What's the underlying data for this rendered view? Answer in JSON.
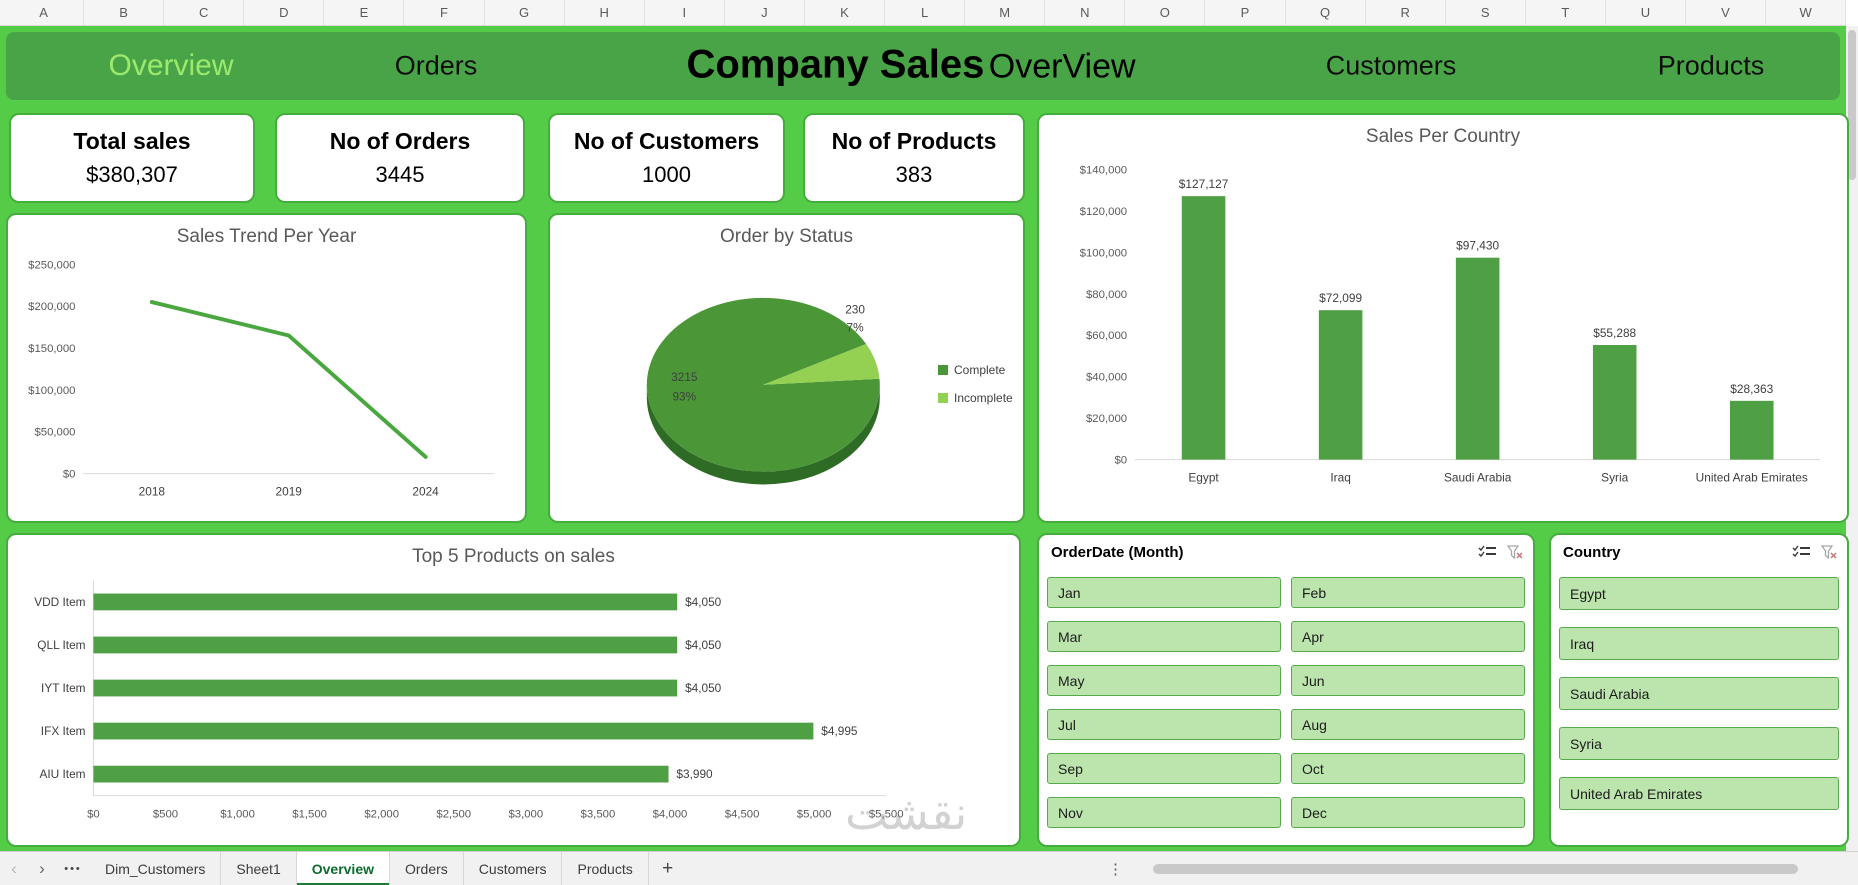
{
  "window": {
    "columns": [
      "A",
      "B",
      "C",
      "D",
      "E",
      "F",
      "G",
      "H",
      "I",
      "J",
      "K",
      "L",
      "M",
      "N",
      "O",
      "P",
      "Q",
      "R",
      "S",
      "T",
      "U",
      "V",
      "W"
    ]
  },
  "nav": {
    "items": [
      "Overview",
      "Orders",
      "Customers",
      "Products"
    ],
    "title_bold": "Company Sales",
    "title_light": "OverView"
  },
  "kpis": [
    {
      "label": "Total sales",
      "value": "$380,307"
    },
    {
      "label": "No of Orders",
      "value": "3445"
    },
    {
      "label": "No of Customers",
      "value": "1000"
    },
    {
      "label": "No of Products",
      "value": "383"
    }
  ],
  "chart_data": [
    {
      "id": "sales_trend",
      "type": "line",
      "title": "Sales Trend Per Year",
      "categories": [
        "2018",
        "2019",
        "2024"
      ],
      "values": [
        205000,
        165000,
        20000
      ],
      "ylim": [
        0,
        250000
      ],
      "ytick_step": 50000,
      "line_color": "#4aa73f",
      "grid": false,
      "legend": "none"
    },
    {
      "id": "order_status",
      "type": "pie",
      "title": "Order by Status",
      "slices": [
        {
          "label": "Complete",
          "value": 3215,
          "pct": "93%",
          "color": "#4b9738"
        },
        {
          "label": "Incomplete",
          "value": 230,
          "pct": "7%",
          "color": "#94d153"
        }
      ],
      "legend_position": "right",
      "effect": "3d"
    },
    {
      "id": "sales_per_country",
      "type": "bar",
      "title": "Sales Per Country",
      "categories": [
        "Egypt",
        "Iraq",
        "Saudi Arabia",
        "Syria",
        "United Arab Emirates"
      ],
      "values": [
        127127,
        72099,
        97430,
        55288,
        28363
      ],
      "data_labels": [
        "$127,127",
        "$72,099",
        "$97,430",
        "$55,288",
        "$28,363"
      ],
      "ylim": [
        0,
        140000
      ],
      "ytick_step": 20000,
      "bar_color": "#4f9f44",
      "grid": false,
      "legend": "none"
    },
    {
      "id": "top5_products",
      "type": "hbar",
      "title": "Top 5 Products on sales",
      "categories": [
        "VDD Item",
        "QLL Item",
        "IYT Item",
        "IFX Item",
        "AIU Item"
      ],
      "values": [
        4050,
        4050,
        4050,
        4995,
        3990
      ],
      "data_labels": [
        "$4,050",
        "$4,050",
        "$4,050",
        "$4,995",
        "$3,990"
      ],
      "xlim": [
        0,
        5500
      ],
      "xtick_step": 500,
      "bar_color": "#4f9f44",
      "grid": false,
      "legend": "none"
    }
  ],
  "slicers": {
    "month": {
      "title": "OrderDate (Month)",
      "items": [
        "Jan",
        "Feb",
        "Mar",
        "Apr",
        "May",
        "Jun",
        "Jul",
        "Aug",
        "Sep",
        "Oct",
        "Nov",
        "Dec"
      ]
    },
    "country": {
      "title": "Country",
      "items": [
        "Egypt",
        "Iraq",
        "Saudi Arabia",
        "Syria",
        "United Arab Emirates"
      ]
    }
  },
  "sheet_bar": {
    "nav_left": "‹",
    "nav_right": "›",
    "overflow_dots": "•••",
    "tabs": [
      "Dim_Customers",
      "Sheet1",
      "Overview",
      "Orders",
      "Customers",
      "Products"
    ],
    "active": "Overview",
    "add_label": "+",
    "menu_dots": "⋮"
  },
  "watermark": "نقشت",
  "colors": {
    "canvas_green": "#55cc47",
    "banner_green": "#49a447",
    "panel_border_green": "#45ad3c",
    "chart_green": "#4f9f44",
    "pie_dark": "#4b9738",
    "pie_light": "#94d153",
    "slicer_fill": "#bce5ad",
    "nav_highlight": "#9ce96e",
    "active_tab_green": "#1c7c34"
  }
}
